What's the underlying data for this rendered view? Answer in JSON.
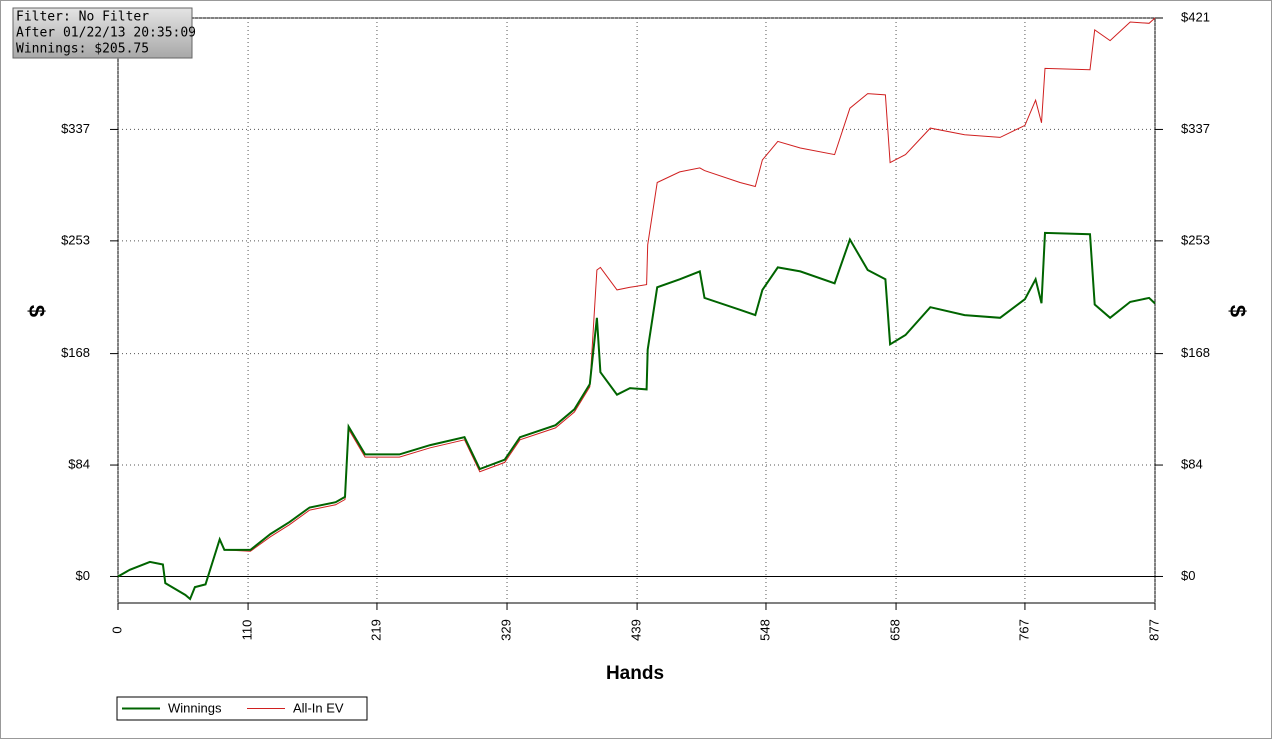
{
  "chart_data": {
    "type": "line",
    "annotations": [
      "Filter: No Filter",
      "After 01/22/13 20:35:09",
      "Winnings: $205.75"
    ],
    "xlabel": "Hands",
    "ylabel": "$",
    "y2label": "$",
    "x": [
      0,
      10,
      27,
      38,
      40,
      57,
      61,
      65,
      74,
      86,
      90,
      112,
      129,
      145,
      162,
      184,
      192,
      195,
      209,
      238,
      264,
      293,
      306,
      327,
      340,
      370,
      386,
      399,
      405,
      408,
      422,
      433,
      447,
      448,
      456,
      475,
      492,
      496,
      526,
      539,
      545,
      558,
      577,
      606,
      619,
      634,
      649,
      653,
      666,
      687,
      716,
      746,
      767,
      776,
      781,
      784,
      822,
      826,
      839,
      856,
      872,
      877
    ],
    "series": [
      {
        "name": "Winnings",
        "color": "#006400",
        "values": [
          0,
          5,
          11,
          9,
          -5,
          -14,
          -17,
          -8,
          -6,
          28,
          20,
          20,
          32,
          41,
          52,
          56,
          60,
          113,
          92,
          92,
          99,
          105,
          81,
          88,
          105,
          114,
          126,
          145,
          195,
          154,
          137,
          142,
          141,
          171,
          218,
          224,
          230,
          210,
          201,
          197,
          216,
          233,
          230,
          221,
          254,
          231,
          224,
          175,
          182,
          203,
          197,
          195,
          209,
          224,
          206,
          259,
          258,
          205,
          195,
          207,
          210,
          205.75
        ]
      },
      {
        "name": "All-In EV",
        "color": "#d02020",
        "values": [
          0,
          5,
          11,
          9,
          -5,
          -14,
          -17,
          -8,
          -6,
          28,
          20,
          19,
          30,
          39,
          50,
          54,
          58,
          111,
          90,
          90,
          97,
          103,
          79,
          86,
          103,
          112,
          124,
          143,
          231,
          233,
          216,
          218,
          220,
          250,
          297,
          305,
          308,
          306,
          297,
          294,
          314,
          328,
          323,
          318,
          353,
          364,
          363,
          312,
          318,
          338,
          333,
          331,
          340,
          359,
          342,
          383,
          382,
          412,
          404,
          418,
          417,
          421
        ]
      }
    ],
    "xlim": [
      0,
      877
    ],
    "xticks": [
      0,
      110,
      219,
      329,
      439,
      548,
      658,
      767,
      877
    ],
    "ylim": [
      -20,
      421
    ],
    "yticks": [
      {
        "value": 0,
        "label": "$0"
      },
      {
        "value": 84,
        "label": "$84"
      },
      {
        "value": 168,
        "label": "$168"
      },
      {
        "value": 253,
        "label": "$253"
      },
      {
        "value": 337,
        "label": "$337"
      },
      {
        "value": 421,
        "label": "$421"
      }
    ],
    "y2lim": [
      -20,
      421
    ],
    "y2ticks": [
      {
        "value": 0,
        "label": "$0"
      },
      {
        "value": 84,
        "label": "$84"
      },
      {
        "value": 168,
        "label": "$168"
      },
      {
        "value": 253,
        "label": "$253"
      },
      {
        "value": 337,
        "label": "$337"
      },
      {
        "value": 421,
        "label": "$421"
      }
    ],
    "grid": true,
    "legend": "bottom-left"
  }
}
